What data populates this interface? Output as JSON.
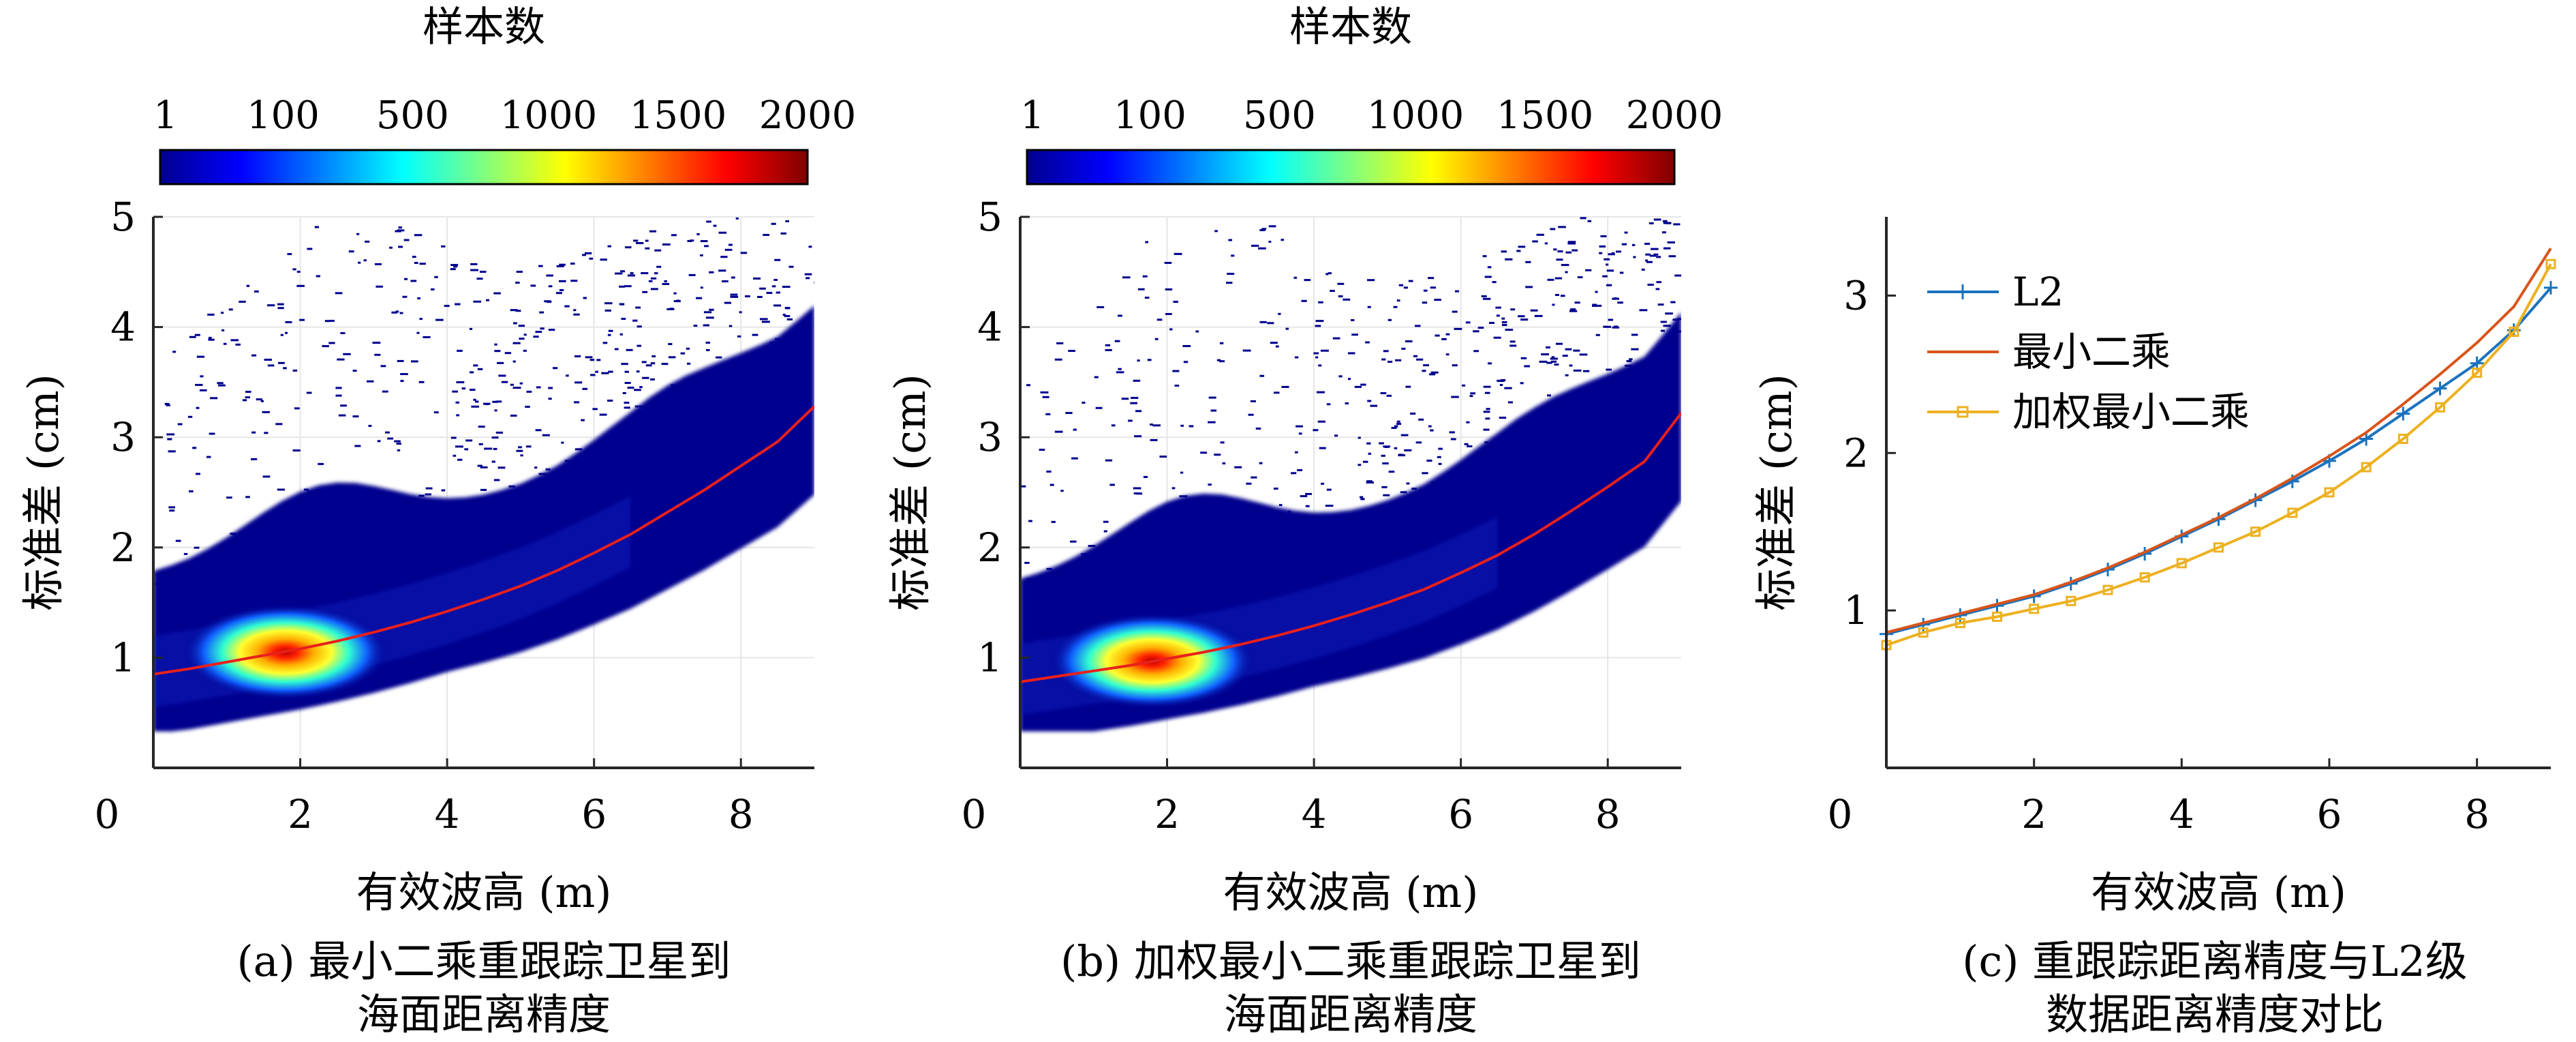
{
  "chart_data": [
    {
      "type": "heatmap",
      "caption_line1": "(a) 最小二乘重跟踪卫星到",
      "caption_line2": "海面距离精度",
      "xlabel": "有效波高 (m)",
      "ylabel": "标准差 (cm)",
      "xlim": [
        0,
        9
      ],
      "ylim": [
        0,
        5
      ],
      "xticks": [
        "0",
        "2",
        "4",
        "6",
        "8"
      ],
      "yticks": [
        "1",
        "2",
        "3",
        "4",
        "5"
      ],
      "grid": true,
      "colorbar": {
        "title": "样本数",
        "ticks": [
          "1",
          "100",
          "500",
          "1000",
          "1500",
          "2000"
        ],
        "colormap": "jet",
        "range": [
          1,
          2000
        ]
      },
      "peak": {
        "x": 1.8,
        "y": 1.05
      },
      "fit_line": {
        "color": "#e8201c",
        "x": [
          0,
          0.5,
          1,
          1.5,
          2,
          2.5,
          3,
          3.5,
          4,
          4.5,
          5,
          5.5,
          6,
          6.5,
          7,
          7.5,
          8,
          8.5,
          9
        ],
        "y": [
          0.85,
          0.9,
          0.96,
          1.02,
          1.08,
          1.15,
          1.23,
          1.32,
          1.42,
          1.53,
          1.65,
          1.79,
          1.95,
          2.12,
          2.32,
          2.52,
          2.74,
          2.96,
          3.28
        ]
      }
    },
    {
      "type": "heatmap",
      "caption_line1": "(b) 加权最小二乘重跟踪卫星到",
      "caption_line2": "海面距离精度",
      "xlabel": "有效波高 (m)",
      "ylabel": "标准差 (cm)",
      "xlim": [
        0,
        9
      ],
      "ylim": [
        0,
        5
      ],
      "xticks": [
        "0",
        "2",
        "4",
        "6",
        "8"
      ],
      "yticks": [
        "1",
        "2",
        "3",
        "4",
        "5"
      ],
      "grid": true,
      "colorbar": {
        "title": "样本数",
        "ticks": [
          "1",
          "100",
          "500",
          "1000",
          "1500",
          "2000"
        ],
        "colormap": "jet",
        "range": [
          1,
          2000
        ]
      },
      "peak": {
        "x": 1.8,
        "y": 0.97
      },
      "fit_line": {
        "color": "#e8201c",
        "x": [
          0,
          0.5,
          1,
          1.5,
          2,
          2.5,
          3,
          3.5,
          4,
          4.5,
          5,
          5.5,
          6,
          6.5,
          7,
          7.5,
          8,
          8.5,
          9
        ],
        "y": [
          0.78,
          0.83,
          0.88,
          0.93,
          0.99,
          1.05,
          1.12,
          1.2,
          1.29,
          1.39,
          1.5,
          1.62,
          1.77,
          1.93,
          2.12,
          2.33,
          2.55,
          2.78,
          3.22
        ]
      }
    },
    {
      "type": "line",
      "caption_line1": "(c) 重跟踪距离精度与L2级",
      "caption_line2": "数据距离精度对比",
      "xlabel": "有效波高 (m)",
      "ylabel": "标准差 (cm)",
      "xlim": [
        0,
        9
      ],
      "ylim": [
        0,
        3.5
      ],
      "xticks": [
        "0",
        "2",
        "4",
        "6",
        "8"
      ],
      "yticks": [
        "1",
        "2",
        "3"
      ],
      "grid": false,
      "legend": "top-left",
      "series": [
        {
          "name": "L2",
          "color": "#1b72bd",
          "marker": "plus",
          "x": [
            0,
            0.5,
            1,
            1.5,
            2,
            2.5,
            3,
            3.5,
            4,
            4.5,
            5,
            5.5,
            6,
            6.5,
            7,
            7.5,
            8,
            8.5,
            9
          ],
          "y": [
            0.85,
            0.91,
            0.97,
            1.03,
            1.09,
            1.17,
            1.26,
            1.36,
            1.47,
            1.58,
            1.7,
            1.82,
            1.95,
            2.09,
            2.25,
            2.41,
            2.57,
            2.78,
            3.05
          ]
        },
        {
          "name": "最小二乘",
          "color": "#d9541a",
          "marker": "none",
          "x": [
            0,
            0.5,
            1,
            1.5,
            2,
            2.5,
            3,
            3.5,
            4,
            4.5,
            5,
            5.5,
            6,
            6.5,
            7,
            7.5,
            8,
            8.5,
            9
          ],
          "y": [
            0.86,
            0.92,
            0.98,
            1.04,
            1.1,
            1.18,
            1.27,
            1.37,
            1.48,
            1.59,
            1.71,
            1.84,
            1.98,
            2.13,
            2.31,
            2.5,
            2.7,
            2.93,
            3.3
          ]
        },
        {
          "name": "加权最小二乘",
          "color": "#edb120",
          "marker": "square",
          "x": [
            0,
            0.5,
            1,
            1.5,
            2,
            2.5,
            3,
            3.5,
            4,
            4.5,
            5,
            5.5,
            6,
            6.5,
            7,
            7.5,
            8,
            8.5,
            9
          ],
          "y": [
            0.78,
            0.86,
            0.92,
            0.96,
            1.01,
            1.06,
            1.13,
            1.21,
            1.3,
            1.4,
            1.5,
            1.62,
            1.75,
            1.91,
            2.09,
            2.29,
            2.51,
            2.77,
            3.2
          ]
        }
      ]
    }
  ]
}
